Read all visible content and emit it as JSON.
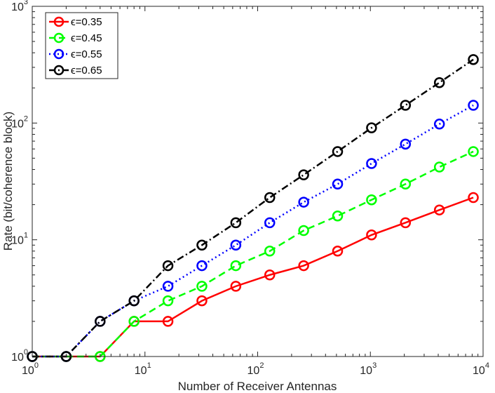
{
  "chart_data": {
    "type": "line",
    "xscale": "log",
    "yscale": "log",
    "xlim": [
      1,
      10000
    ],
    "ylim": [
      1,
      1000
    ],
    "xlabel": "Number of Receiver Antennas",
    "ylabel": "Rate (bit/coherence block)",
    "xticks": [
      {
        "value": 1,
        "base": "10",
        "exp": "0"
      },
      {
        "value": 10,
        "base": "10",
        "exp": "1"
      },
      {
        "value": 100,
        "base": "10",
        "exp": "2"
      },
      {
        "value": 1000,
        "base": "10",
        "exp": "3"
      },
      {
        "value": 10000,
        "base": "10",
        "exp": "4"
      }
    ],
    "yticks": [
      {
        "value": 1,
        "base": "10",
        "exp": "0"
      },
      {
        "value": 10,
        "base": "10",
        "exp": "1"
      },
      {
        "value": 100,
        "base": "10",
        "exp": "2"
      },
      {
        "value": 1000,
        "base": "10",
        "exp": "3"
      }
    ],
    "grid": false,
    "legend_position": "top-left",
    "x": [
      1,
      2,
      4,
      8,
      16,
      32,
      64,
      128,
      256,
      512,
      1024,
      2048,
      4096,
      8192
    ],
    "series": [
      {
        "name": "ϵ=0.35",
        "color": "#ff0000",
        "dash": "solid",
        "values": [
          1,
          1,
          1,
          2,
          2,
          3,
          4,
          5,
          6,
          8,
          11,
          14,
          18,
          23
        ]
      },
      {
        "name": "ϵ=0.45",
        "color": "#00ff00",
        "dash": "dashed",
        "values": [
          1,
          1,
          1,
          2,
          3,
          4,
          6,
          8,
          12,
          16,
          22,
          30,
          42,
          57
        ]
      },
      {
        "name": "ϵ=0.55",
        "color": "#0000ff",
        "dash": "dotted",
        "values": [
          1,
          1,
          2,
          3,
          4,
          6,
          9,
          14,
          21,
          30,
          45,
          66,
          98,
          142
        ]
      },
      {
        "name": "ϵ=0.65",
        "color": "#000000",
        "dash": "dashdot",
        "values": [
          1,
          1,
          2,
          3,
          6,
          9,
          14,
          23,
          36,
          57,
          91,
          142,
          222,
          350
        ]
      }
    ]
  }
}
